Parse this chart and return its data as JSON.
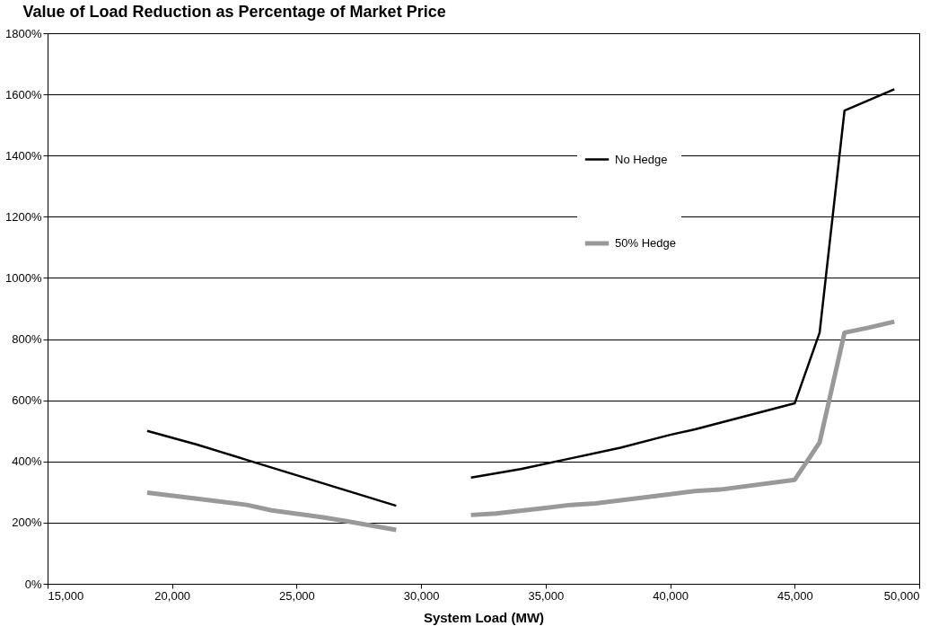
{
  "chart_data": {
    "type": "line",
    "title": "Value of Load Reduction as Percentage of Market Price",
    "xlabel": "System Load (MW)",
    "xlim": [
      15000,
      50000
    ],
    "xticks": [
      {
        "value": 15000,
        "label": "15,000"
      },
      {
        "value": 20000,
        "label": "20,000"
      },
      {
        "value": 25000,
        "label": "25,000"
      },
      {
        "value": 30000,
        "label": "30,000"
      },
      {
        "value": 35000,
        "label": "35,000"
      },
      {
        "value": 40000,
        "label": "40,000"
      },
      {
        "value": 45000,
        "label": "45,000"
      },
      {
        "value": 50000,
        "label": "50,000"
      }
    ],
    "ylim": [
      0,
      1800
    ],
    "yticks": [
      {
        "value": 0,
        "label": "0%"
      },
      {
        "value": 200,
        "label": "200%"
      },
      {
        "value": 400,
        "label": "400%"
      },
      {
        "value": 600,
        "label": "600%"
      },
      {
        "value": 800,
        "label": "800%"
      },
      {
        "value": 1000,
        "label": "1000%"
      },
      {
        "value": 1200,
        "label": "1200%"
      },
      {
        "value": 1400,
        "label": "1400%"
      },
      {
        "value": 1600,
        "label": "1600%"
      },
      {
        "value": 1800,
        "label": "1800%"
      }
    ],
    "grid": "y",
    "legend": "right",
    "marker": "none",
    "line_style": "solid",
    "series": [
      {
        "name": "No Hedge",
        "color": "#000000",
        "x": [
          19000,
          21000,
          23000,
          25000,
          27000,
          29000,
          30000,
          32000,
          34000,
          36000,
          38000,
          40000,
          41000,
          45000,
          46000,
          47000,
          49000
        ],
        "values": [
          500,
          455,
          405,
          355,
          305,
          255,
          null,
          347,
          375,
          410,
          445,
          487,
          505,
          590,
          821,
          1547,
          1617
        ]
      },
      {
        "name": "50% Hedge",
        "color": "#999999",
        "x": [
          19000,
          21000,
          23000,
          24000,
          26000,
          27000,
          29000,
          30000,
          32000,
          33000,
          35000,
          36000,
          37000,
          40000,
          41000,
          42000,
          45000,
          46000,
          47000,
          48000,
          49000
        ],
        "values": [
          298,
          278,
          258,
          240,
          218,
          205,
          176,
          null,
          225,
          230,
          248,
          258,
          263,
          293,
          303,
          308,
          340,
          462,
          821,
          838,
          857
        ]
      }
    ]
  }
}
